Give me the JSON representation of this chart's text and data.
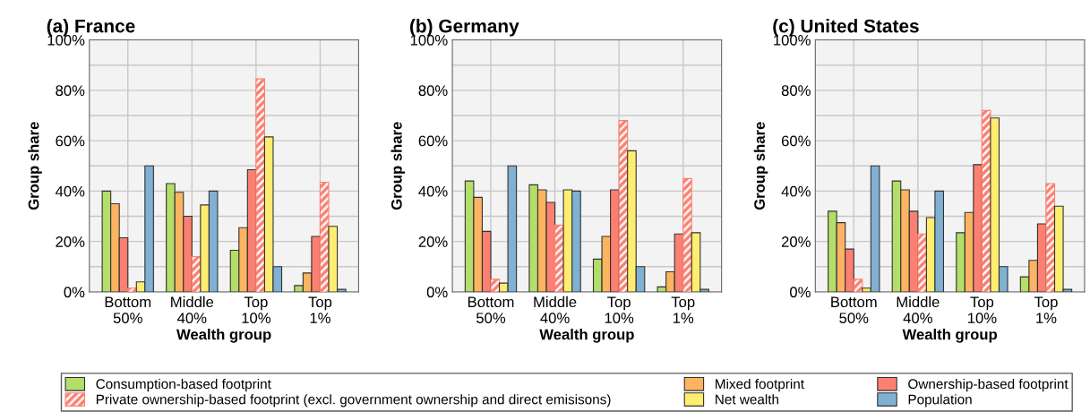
{
  "chart_data": [
    {
      "type": "bar",
      "title": "(a) France",
      "xlabel": "Wealth group",
      "ylabel": "Group share",
      "categories": [
        "Bottom\n50%",
        "Middle\n40%",
        "Top\n10%",
        "Top\n1%"
      ],
      "ylim": [
        0,
        100
      ],
      "yticks": [
        {
          "value": 0,
          "label": "0%"
        },
        {
          "value": 10,
          "label": null
        },
        {
          "value": 20,
          "label": "20%"
        },
        {
          "value": 30,
          "label": null
        },
        {
          "value": 40,
          "label": "40%"
        },
        {
          "value": 50,
          "label": null
        },
        {
          "value": 60,
          "label": "60%"
        },
        {
          "value": 70,
          "label": null
        },
        {
          "value": 80,
          "label": "80%"
        },
        {
          "value": 90,
          "label": null
        },
        {
          "value": 100,
          "label": "100%"
        }
      ],
      "grid": true,
      "legend": "bottom",
      "series": [
        {
          "name": "Consumption-based footprint",
          "color": "#b3de69",
          "values": [
            40,
            43,
            16.5,
            2.5
          ]
        },
        {
          "name": "Mixed footprint",
          "color": "#fdb462",
          "values": [
            35,
            39.5,
            25.5,
            7.5
          ]
        },
        {
          "name": "Ownership-based footprint",
          "color": "#fb8072",
          "values": [
            21.5,
            30,
            48.5,
            22
          ]
        },
        {
          "name": "Private ownership-based footprint (excl. government ownership and direct emisisons)",
          "color": "#fb8072",
          "values": [
            1.5,
            14,
            84.5,
            43.5
          ]
        },
        {
          "name": "Net wealth",
          "color": "#ffed6f",
          "values": [
            4,
            34.5,
            61.5,
            26
          ]
        },
        {
          "name": "Population",
          "color": "#80b1d3",
          "values": [
            50,
            40,
            10,
            1
          ]
        }
      ]
    },
    {
      "type": "bar",
      "title": "(b) Germany",
      "xlabel": "Wealth group",
      "ylabel": "Group share",
      "categories": [
        "Bottom\n50%",
        "Middle\n40%",
        "Top\n10%",
        "Top\n1%"
      ],
      "ylim": [
        0,
        100
      ],
      "yticks": [
        {
          "value": 0,
          "label": "0%"
        },
        {
          "value": 10,
          "label": null
        },
        {
          "value": 20,
          "label": "20%"
        },
        {
          "value": 30,
          "label": null
        },
        {
          "value": 40,
          "label": "40%"
        },
        {
          "value": 50,
          "label": null
        },
        {
          "value": 60,
          "label": "60%"
        },
        {
          "value": 70,
          "label": null
        },
        {
          "value": 80,
          "label": "80%"
        },
        {
          "value": 90,
          "label": null
        },
        {
          "value": 100,
          "label": "100%"
        }
      ],
      "grid": true,
      "series": [
        {
          "color": "#b3de69",
          "values": [
            44,
            42.5,
            13,
            2
          ]
        },
        {
          "color": "#fdb462",
          "values": [
            37.5,
            40.5,
            22,
            8
          ]
        },
        {
          "color": "#fb8072",
          "values": [
            24,
            35.5,
            40.5,
            23
          ]
        },
        {
          "color": "#fb8072",
          "values": [
            5,
            26.5,
            68,
            45
          ]
        },
        {
          "color": "#ffed6f",
          "values": [
            3.5,
            40.5,
            56,
            23.5
          ]
        },
        {
          "color": "#80b1d3",
          "values": [
            50,
            40,
            10,
            1
          ]
        }
      ]
    },
    {
      "type": "bar",
      "title": "(c) United States",
      "xlabel": "Wealth group",
      "ylabel": "Group share",
      "categories": [
        "Bottom\n50%",
        "Middle\n40%",
        "Top\n10%",
        "Top\n1%"
      ],
      "ylim": [
        0,
        100
      ],
      "yticks": [
        {
          "value": 0,
          "label": "0%"
        },
        {
          "value": 10,
          "label": null
        },
        {
          "value": 20,
          "label": "20%"
        },
        {
          "value": 30,
          "label": null
        },
        {
          "value": 40,
          "label": "40%"
        },
        {
          "value": 50,
          "label": null
        },
        {
          "value": 60,
          "label": "60%"
        },
        {
          "value": 70,
          "label": null
        },
        {
          "value": 80,
          "label": "80%"
        },
        {
          "value": 90,
          "label": null
        },
        {
          "value": 100,
          "label": "100%"
        }
      ],
      "grid": true,
      "series": [
        {
          "color": "#b3de69",
          "values": [
            32,
            44,
            23.5,
            6
          ]
        },
        {
          "color": "#fdb462",
          "values": [
            27.5,
            40.5,
            31.5,
            12.5
          ]
        },
        {
          "color": "#fb8072",
          "values": [
            17,
            32,
            50.5,
            27
          ]
        },
        {
          "color": "#fb8072",
          "values": [
            5,
            23,
            72,
            43
          ]
        },
        {
          "color": "#ffed6f",
          "values": [
            1.5,
            29.5,
            69,
            34
          ]
        },
        {
          "color": "#80b1d3",
          "values": [
            50,
            40,
            10,
            1
          ]
        }
      ]
    }
  ]
}
